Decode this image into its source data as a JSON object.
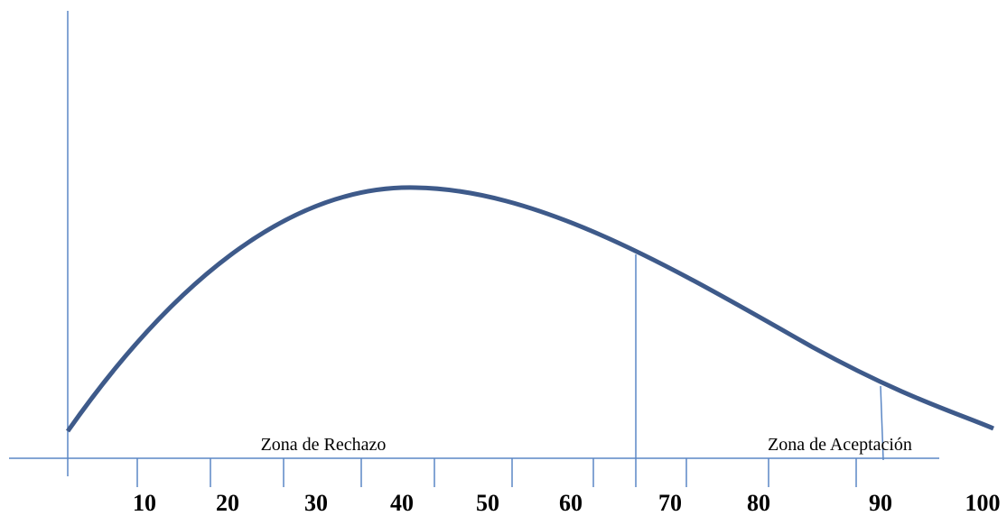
{
  "zones": {
    "rejection": "Zona de Rechazo",
    "acceptance": "Zona de Aceptación"
  },
  "axis_labels": [
    10,
    20,
    30,
    40,
    50,
    60,
    70,
    80,
    90,
    100
  ]
}
